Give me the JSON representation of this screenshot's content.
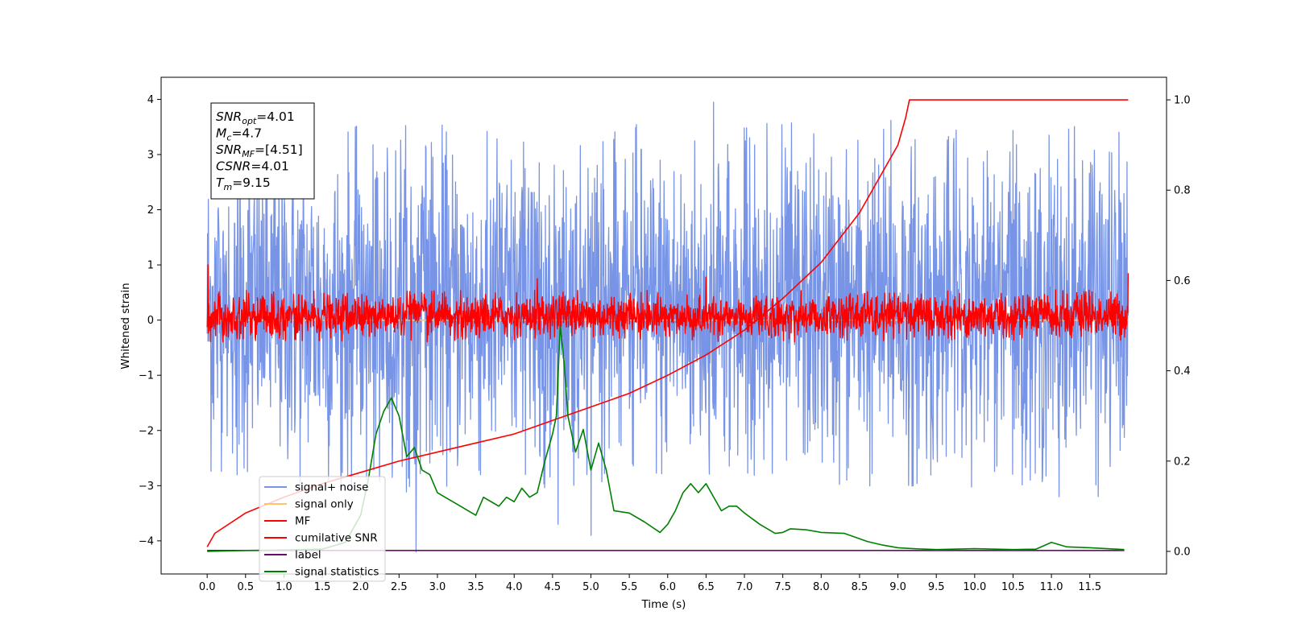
{
  "chart_data": {
    "type": "line",
    "xlabel": "Time (s)",
    "ylabel": "Whitened strain",
    "ylabel_right": "",
    "xlim": [
      -0.6,
      12.5
    ],
    "ylim": [
      -4.6,
      4.4
    ],
    "ylim_right": [
      -0.05,
      1.05
    ],
    "x_ticks": [
      0.0,
      0.5,
      1.0,
      1.5,
      2.0,
      2.5,
      3.0,
      3.5,
      4.0,
      4.5,
      5.0,
      5.5,
      6.0,
      6.5,
      7.0,
      7.5,
      8.0,
      8.5,
      9.0,
      9.5,
      10.0,
      10.5,
      11.0,
      11.5
    ],
    "x_tick_labels": [
      "0.0",
      "0.5",
      "1.0",
      "1.5",
      "2.0",
      "2.5",
      "3.0",
      "3.5",
      "4.0",
      "4.5",
      "5.0",
      "5.5",
      "6.0",
      "6.5",
      "7.0",
      "7.5",
      "8.0",
      "8.5",
      "9.0",
      "9.5",
      "10.0",
      "10.5",
      "11.0",
      "11.5"
    ],
    "y_ticks": [
      -4,
      -3,
      -2,
      -1,
      0,
      1,
      2,
      3,
      4
    ],
    "y_tick_labels": [
      "−4",
      "−3",
      "−2",
      "−1",
      "0",
      "1",
      "2",
      "3",
      "4"
    ],
    "y_ticks_right": [
      0.0,
      0.2,
      0.4,
      0.6,
      0.8,
      1.0
    ],
    "y_tick_labels_right": [
      "0.0",
      "0.2",
      "0.4",
      "0.6",
      "0.8",
      "1.0"
    ],
    "grid": false,
    "legend_position": "lower-left",
    "info_box": [
      {
        "base": "SNR",
        "sub": "opt",
        "value": "=4.01"
      },
      {
        "base": "M",
        "sub": "c",
        "value": "=4.7"
      },
      {
        "base": "SNR",
        "sub": "MF",
        "value": "=[4.51]"
      },
      {
        "base": "CSNR",
        "sub": "",
        "value": "=4.01"
      },
      {
        "base": "T",
        "sub": "m",
        "value": "=9.15"
      }
    ],
    "series": [
      {
        "name": "signal+ noise",
        "color": "#7894e6",
        "axis": "left",
        "kind": "noise",
        "time_range": [
          0,
          12
        ],
        "envelope": [
          -3.2,
          3.6
        ],
        "spikes": [
          [
            2.72,
            -4.2
          ],
          [
            6.6,
            3.95
          ],
          [
            8.91,
            3.62
          ],
          [
            11.1,
            -3.2
          ],
          [
            4.57,
            -3.7
          ],
          [
            5.0,
            -3.9
          ],
          [
            7.0,
            3.48
          ],
          [
            2.92,
            3.22
          ]
        ]
      },
      {
        "name": "signal only",
        "color": "#ffc266",
        "axis": "left",
        "kind": "flat",
        "x": [
          0,
          12
        ],
        "y": [
          0,
          0
        ]
      },
      {
        "name": "MF",
        "color": "#ff0000",
        "axis": "left",
        "kind": "noise",
        "time_range": [
          0,
          12
        ],
        "envelope": [
          -0.4,
          0.55
        ],
        "spikes": [
          [
            0.01,
            1.0
          ],
          [
            12.0,
            0.85
          ],
          [
            6.5,
            0.78
          ],
          [
            4.3,
            0.75
          ]
        ]
      },
      {
        "name": "cumilative SNR",
        "color": "#ff0000",
        "axis": "right",
        "kind": "line",
        "x": [
          0.0,
          0.1,
          0.5,
          1.0,
          1.5,
          2.0,
          2.5,
          3.0,
          3.5,
          4.0,
          4.5,
          5.0,
          5.5,
          6.0,
          6.5,
          7.0,
          7.5,
          8.0,
          8.5,
          9.0,
          9.1,
          9.15,
          12.0
        ],
        "y": [
          0.01,
          0.04,
          0.085,
          0.12,
          0.15,
          0.175,
          0.2,
          0.22,
          0.24,
          0.26,
          0.29,
          0.32,
          0.35,
          0.39,
          0.435,
          0.49,
          0.56,
          0.64,
          0.75,
          0.9,
          0.96,
          1.0,
          1.0
        ]
      },
      {
        "name": "label",
        "color": "#6a0a6a",
        "axis": "right",
        "kind": "line",
        "x": [
          0.0,
          11.95
        ],
        "y": [
          0.002,
          0.002
        ]
      },
      {
        "name": "signal statistics",
        "color": "#008000",
        "axis": "right",
        "kind": "line",
        "x": [
          0.0,
          0.5,
          1.0,
          1.5,
          1.8,
          2.0,
          2.1,
          2.2,
          2.3,
          2.4,
          2.5,
          2.6,
          2.7,
          2.8,
          2.9,
          3.0,
          3.1,
          3.3,
          3.5,
          3.6,
          3.7,
          3.8,
          3.9,
          4.0,
          4.1,
          4.2,
          4.3,
          4.4,
          4.5,
          4.55,
          4.6,
          4.65,
          4.7,
          4.8,
          4.9,
          5.0,
          5.1,
          5.2,
          5.3,
          5.5,
          5.7,
          5.9,
          6.0,
          6.1,
          6.2,
          6.3,
          6.4,
          6.5,
          6.6,
          6.7,
          6.8,
          6.9,
          7.0,
          7.2,
          7.4,
          7.5,
          7.6,
          7.8,
          8.0,
          8.3,
          8.6,
          8.8,
          9.0,
          9.2,
          9.5,
          10.0,
          10.5,
          10.8,
          11.0,
          11.2,
          11.5,
          11.95
        ],
        "y": [
          0.0,
          0.002,
          0.003,
          0.005,
          0.02,
          0.08,
          0.16,
          0.26,
          0.31,
          0.34,
          0.3,
          0.21,
          0.23,
          0.18,
          0.17,
          0.13,
          0.12,
          0.1,
          0.08,
          0.12,
          0.11,
          0.1,
          0.12,
          0.11,
          0.14,
          0.12,
          0.13,
          0.2,
          0.26,
          0.3,
          0.5,
          0.42,
          0.3,
          0.22,
          0.27,
          0.18,
          0.24,
          0.18,
          0.09,
          0.085,
          0.065,
          0.042,
          0.06,
          0.09,
          0.13,
          0.15,
          0.13,
          0.15,
          0.12,
          0.09,
          0.1,
          0.1,
          0.085,
          0.06,
          0.04,
          0.042,
          0.05,
          0.048,
          0.042,
          0.04,
          0.022,
          0.014,
          0.008,
          0.006,
          0.004,
          0.006,
          0.004,
          0.005,
          0.02,
          0.01,
          0.008,
          0.004
        ]
      }
    ]
  }
}
